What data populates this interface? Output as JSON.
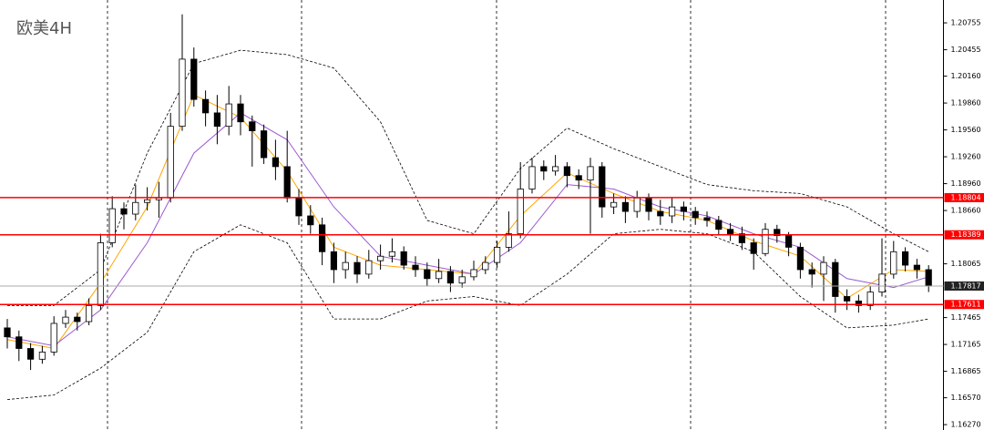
{
  "chart_data": {
    "type": "candlestick",
    "title": "欧美4H",
    "xlim": [
      -0.5,
      79.5
    ],
    "ylim": [
      1.1621,
      1.2101
    ],
    "yticks": [
      1.20755,
      1.20455,
      {
        "value": 1.2016,
        "label": "1.20160"
      },
      {
        "value": 1.1986,
        "label": "1.19860"
      },
      {
        "value": 1.1956,
        "label": "1.19560"
      },
      {
        "value": 1.1926,
        "label": "1.19260"
      },
      {
        "value": 1.1896,
        "label": "1.18960"
      },
      {
        "value": 1.1866,
        "label": "1.18660"
      },
      1.18065,
      1.17465,
      1.17165,
      1.16865,
      {
        "value": 1.1657,
        "label": "1.16570"
      },
      {
        "value": 1.1627,
        "label": "1.16270"
      }
    ],
    "up_color": "#ffffff",
    "down_color": "#000000",
    "open": [
      1.1735,
      1.1725,
      1.1712,
      1.17,
      1.1708,
      1.174,
      1.1747,
      1.1742,
      1.176,
      1.183,
      1.1868,
      1.1862,
      1.1875,
      1.1878,
      1.188,
      1.196,
      1.2035,
      1.199,
      1.1975,
      1.196,
      1.1985,
      1.1965,
      1.1955,
      1.1925,
      1.1915,
      1.188,
      1.186,
      1.185,
      1.182,
      1.18,
      1.1808,
      1.1795,
      1.181,
      1.1815,
      1.182,
      1.1805,
      1.18,
      1.179,
      1.1798,
      1.1785,
      1.1792,
      1.18,
      1.1808,
      1.1825,
      1.184,
      1.189,
      1.1915,
      1.191,
      1.1915,
      1.1905,
      1.19,
      1.1915,
      1.187,
      1.1875,
      1.1865,
      1.188,
      1.1865,
      1.186,
      1.187,
      1.1865,
      1.1858,
      1.1855,
      1.1845,
      1.184,
      1.183,
      1.1818,
      1.1845,
      1.1838,
      1.1825,
      1.18,
      1.1795,
      1.1808,
      1.177,
      1.1765,
      1.176,
      1.1775,
      1.1795,
      1.182,
      1.1805,
      1.18
    ],
    "high": [
      1.1745,
      1.1732,
      1.1718,
      1.1715,
      1.1748,
      1.1755,
      1.1752,
      1.1768,
      1.184,
      1.1882,
      1.1875,
      1.1895,
      1.1892,
      1.1898,
      1.1975,
      1.2085,
      1.2048,
      1.2,
      1.1995,
      1.2005,
      1.1995,
      1.1972,
      1.1962,
      1.1945,
      1.1955,
      1.189,
      1.1872,
      1.1858,
      1.183,
      1.182,
      1.1815,
      1.1822,
      1.1828,
      1.1835,
      1.1826,
      1.1815,
      1.1808,
      1.1812,
      1.1804,
      1.18,
      1.181,
      1.1815,
      1.1832,
      1.1865,
      1.192,
      1.1925,
      1.1922,
      1.1928,
      1.192,
      1.1912,
      1.1925,
      1.192,
      1.1885,
      1.1882,
      1.1888,
      1.1885,
      1.1878,
      1.188,
      1.1876,
      1.187,
      1.1865,
      1.186,
      1.1852,
      1.1848,
      1.1835,
      1.1852,
      1.185,
      1.1842,
      1.183,
      1.1808,
      1.1815,
      1.1812,
      1.1778,
      1.1772,
      1.1782,
      1.1835,
      1.1832,
      1.1825,
      1.1812,
      1.1805
    ],
    "low": [
      1.1712,
      1.1698,
      1.1688,
      1.1695,
      1.1704,
      1.1735,
      1.1732,
      1.1738,
      1.1755,
      1.1825,
      1.1845,
      1.1855,
      1.1866,
      1.1858,
      1.1875,
      1.1955,
      1.1982,
      1.196,
      1.194,
      1.195,
      1.195,
      1.1915,
      1.1918,
      1.19,
      1.1875,
      1.185,
      1.184,
      1.1805,
      1.1785,
      1.179,
      1.1785,
      1.179,
      1.18,
      1.1808,
      1.18,
      1.1792,
      1.1782,
      1.1785,
      1.1775,
      1.178,
      1.1788,
      1.1795,
      1.1802,
      1.182,
      1.1835,
      1.1885,
      1.19,
      1.1905,
      1.1892,
      1.189,
      1.184,
      1.1858,
      1.1862,
      1.1852,
      1.1858,
      1.1855,
      1.185,
      1.1852,
      1.1855,
      1.185,
      1.1848,
      1.1838,
      1.1832,
      1.1822,
      1.18,
      1.1815,
      1.183,
      1.1815,
      1.179,
      1.178,
      1.1765,
      1.1752,
      1.1755,
      1.1752,
      1.1755,
      1.177,
      1.179,
      1.1798,
      1.179,
      1.1775
    ],
    "close": [
      1.1725,
      1.1712,
      1.17,
      1.1708,
      1.174,
      1.1747,
      1.1742,
      1.176,
      1.183,
      1.1868,
      1.1862,
      1.1875,
      1.1878,
      1.188,
      1.196,
      1.2035,
      1.199,
      1.1975,
      1.196,
      1.1985,
      1.1965,
      1.1955,
      1.1925,
      1.1915,
      1.188,
      1.186,
      1.185,
      1.182,
      1.18,
      1.1808,
      1.1795,
      1.181,
      1.1815,
      1.182,
      1.1805,
      1.18,
      1.179,
      1.1798,
      1.1785,
      1.1792,
      1.18,
      1.1808,
      1.1825,
      1.184,
      1.189,
      1.1915,
      1.191,
      1.1915,
      1.1905,
      1.19,
      1.1915,
      1.187,
      1.1875,
      1.1865,
      1.188,
      1.1865,
      1.186,
      1.187,
      1.1865,
      1.1858,
      1.1855,
      1.1845,
      1.184,
      1.183,
      1.1818,
      1.1845,
      1.1838,
      1.1825,
      1.18,
      1.1795,
      1.1808,
      1.177,
      1.1765,
      1.176,
      1.1775,
      1.1795,
      1.182,
      1.1805,
      1.18,
      1.1782
    ],
    "overlays": [
      {
        "color": "#ffa500",
        "dashed": false,
        "x": [
          0,
          4,
          8,
          12,
          16,
          20,
          24,
          28,
          32,
          36,
          40,
          44,
          48,
          52,
          56,
          60,
          64,
          68,
          72,
          76,
          79
        ],
        "values": [
          1.1722,
          1.1712,
          1.1785,
          1.187,
          1.1995,
          1.197,
          1.191,
          1.1825,
          1.1805,
          1.18,
          1.1795,
          1.186,
          1.1908,
          1.1885,
          1.1865,
          1.1855,
          1.1832,
          1.1815,
          1.1768,
          1.18,
          1.1798
        ]
      },
      {
        "color": "#9b59d0",
        "dashed": false,
        "x": [
          0,
          4,
          8,
          12,
          16,
          20,
          24,
          28,
          32,
          36,
          40,
          44,
          48,
          52,
          56,
          60,
          64,
          68,
          72,
          76,
          79
        ],
        "values": [
          1.1725,
          1.1715,
          1.1755,
          1.183,
          1.193,
          1.1975,
          1.1945,
          1.187,
          1.1815,
          1.1805,
          1.1795,
          1.183,
          1.1895,
          1.189,
          1.187,
          1.186,
          1.184,
          1.1825,
          1.179,
          1.178,
          1.1792
        ]
      },
      {
        "color": "#000000",
        "dashed": true,
        "x": [
          0,
          4,
          8,
          12,
          16,
          20,
          24,
          28,
          32,
          36,
          40,
          44,
          48,
          52,
          56,
          60,
          64,
          68,
          72,
          76,
          79
        ],
        "values": [
          1.176,
          1.176,
          1.18,
          1.193,
          1.203,
          1.2045,
          1.204,
          1.2025,
          1.1965,
          1.1855,
          1.184,
          1.1913,
          1.1958,
          1.1935,
          1.1915,
          1.1895,
          1.1888,
          1.1885,
          1.187,
          1.184,
          1.182
        ]
      },
      {
        "color": "#000000",
        "dashed": true,
        "x": [
          0,
          4,
          8,
          12,
          16,
          20,
          24,
          28,
          32,
          36,
          40,
          44,
          48,
          52,
          56,
          60,
          64,
          68,
          72,
          76,
          79
        ],
        "values": [
          1.1655,
          1.166,
          1.169,
          1.173,
          1.182,
          1.185,
          1.183,
          1.1745,
          1.1745,
          1.1765,
          1.177,
          1.176,
          1.1795,
          1.184,
          1.1845,
          1.184,
          1.182,
          1.177,
          1.1735,
          1.1738,
          1.1745
        ]
      }
    ],
    "levels": [
      1.18804,
      1.18389,
      1.17611
    ],
    "level_color": "#ff0000",
    "current_price": 1.17817
  }
}
